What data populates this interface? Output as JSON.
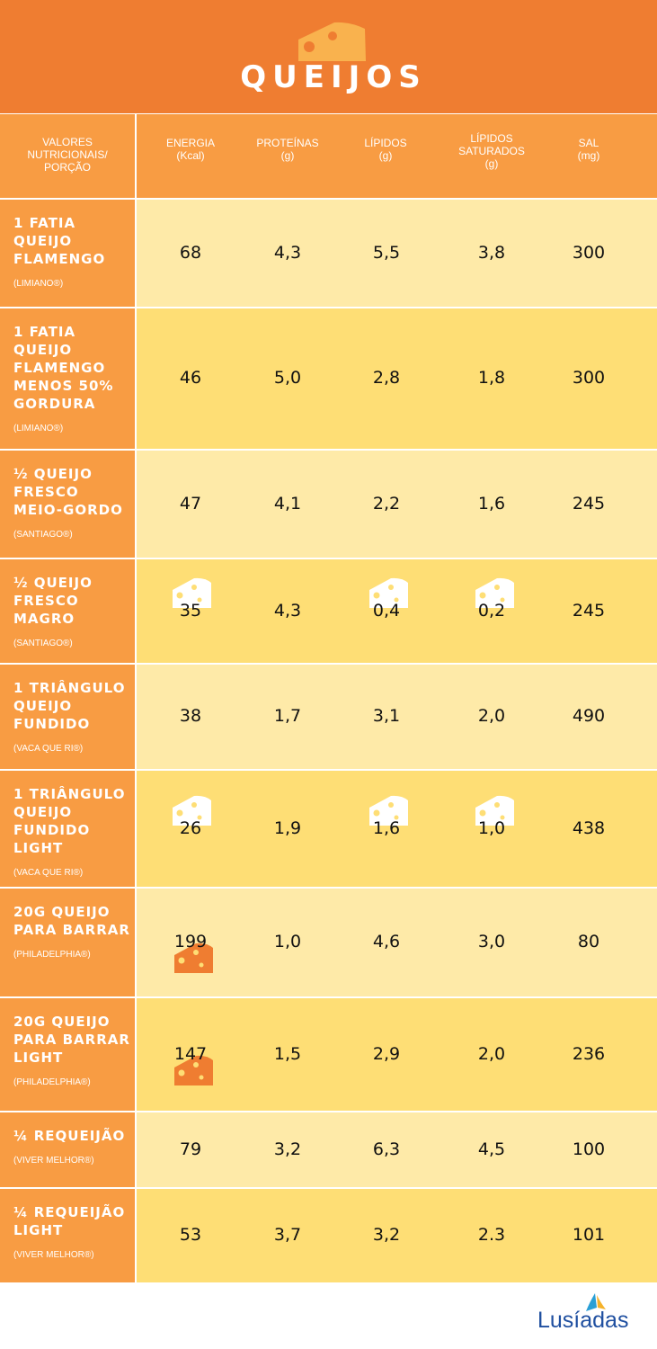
{
  "title": "QUEIJOS",
  "header_row": {
    "label_lines": [
      "VALORES",
      "NUTRICIONAIS/",
      "PORÇÃO"
    ],
    "columns": [
      {
        "name": "ENERGIA",
        "unit": "(Kcal)"
      },
      {
        "name": "PROTEÍNAS",
        "unit": "(g)"
      },
      {
        "name": "LÍPIDOS",
        "unit": "(g)"
      },
      {
        "name": "LÍPIDOS SATURADOS",
        "unit": "(g)"
      },
      {
        "name": "SAL",
        "unit": "(mg)"
      }
    ]
  },
  "rows": [
    {
      "name": "1 FATIA QUEIJO FLAMENGO",
      "brand": "(LIMIANO®)",
      "values": [
        "68",
        "4,3",
        "5,5",
        "3,8",
        "300"
      ]
    },
    {
      "name": "1 FATIA QUEIJO FLAMENGO MENOS 50% GORDURA",
      "brand": "(LIMIANO®)",
      "values": [
        "46",
        "5,0",
        "2,8",
        "1,8",
        "300"
      ]
    },
    {
      "name": "½ QUEIJO FRESCO MEIO-GORDO",
      "brand": "(SANTIAGO®)",
      "values": [
        "47",
        "4,1",
        "2,2",
        "1,6",
        "245"
      ]
    },
    {
      "name": "½ QUEIJO FRESCO MAGRO",
      "brand": "(SANTIAGO®)",
      "values": [
        "35",
        "4,3",
        "0,4",
        "0,2",
        "245"
      ]
    },
    {
      "name": "1 TRIÂNGULO QUEIJO FUNDIDO",
      "brand": "(VACA QUE RI®)",
      "values": [
        "38",
        "1,7",
        "3,1",
        "2,0",
        "490"
      ]
    },
    {
      "name": "1 TRIÂNGULO QUEIJO FUNDIDO LIGHT",
      "brand": "(VACA QUE RI®)",
      "values": [
        "26",
        "1,9",
        "1,6",
        "1,0",
        "438"
      ]
    },
    {
      "name": "20g QUEIJO PARA BARRAR",
      "brand": "(PHILADELPHIA®)",
      "values": [
        "199",
        "1,0",
        "4,6",
        "3,0",
        "80"
      ]
    },
    {
      "name": "20g QUEIJO PARA BARRAR LIGHT",
      "brand": "(PHILADELPHIA®)",
      "values": [
        "147",
        "1,5",
        "2,9",
        "2,0",
        "236"
      ]
    },
    {
      "name": "¼ REQUEIJÃO",
      "brand": "(VIVER MELHOR®)",
      "values": [
        "79",
        "3,2",
        "6,3",
        "4,5",
        "100"
      ]
    },
    {
      "name": "¼ REQUEIJÃO LIGHT",
      "brand": "(VIVER MELHOR®)",
      "values": [
        "53",
        "3,7",
        "3,2",
        "2.3",
        "101"
      ]
    }
  ],
  "logo_text": "Lusíadas",
  "colors": {
    "header": "#ef7d31",
    "label_column": "#f89c43",
    "row_light": "#feeaa8",
    "row_dark": "#fede75",
    "cheese_white": "#ffffff",
    "cheese_orange": "#ef7d31"
  }
}
